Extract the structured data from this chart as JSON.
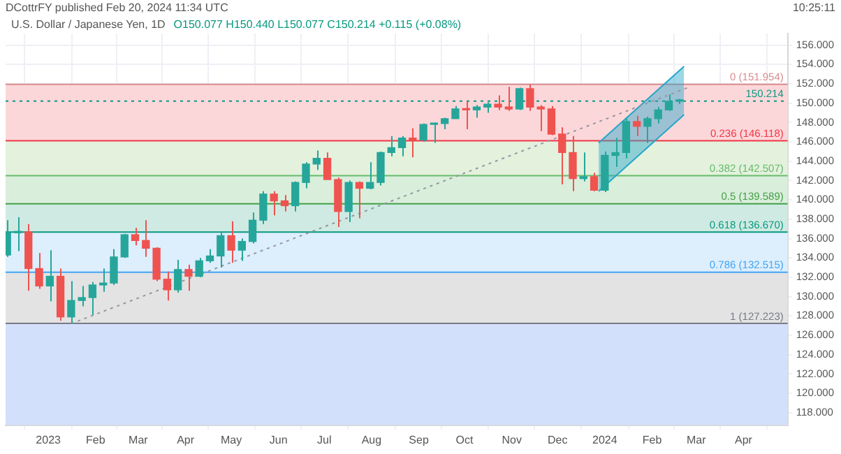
{
  "chart_data": {
    "type": "candlestick",
    "title": "U.S. Dollar / Japanese Yen, 1D",
    "subtitle": "O150.077 H150.440 L150.077 C150.214 +0.115 (+0.08%)",
    "annotations": [
      "DCottrFY published Feb 20, 2024 11:34 UTC",
      "10:25:11"
    ],
    "xlim": [
      "2022-12-04",
      "2024-04-30"
    ],
    "xticks": [
      {
        "value": "2023-01-01",
        "label": "2023"
      },
      {
        "value": "2023-02-01",
        "label": "Feb"
      },
      {
        "value": "2023-03-01",
        "label": "Mar"
      },
      {
        "value": "2023-04-01",
        "label": "Apr"
      },
      {
        "value": "2023-05-01",
        "label": "May"
      },
      {
        "value": "2023-06-01",
        "label": "Jun"
      },
      {
        "value": "2023-07-01",
        "label": "Jul"
      },
      {
        "value": "2023-08-01",
        "label": "Aug"
      },
      {
        "value": "2023-09-01",
        "label": "Sep"
      },
      {
        "value": "2023-10-01",
        "label": "Oct"
      },
      {
        "value": "2023-11-01",
        "label": "Nov"
      },
      {
        "value": "2023-12-01",
        "label": "Dec"
      },
      {
        "value": "2024-01-01",
        "label": "2024"
      },
      {
        "value": "2024-02-01",
        "label": "Feb"
      },
      {
        "value": "2024-03-01",
        "label": "Mar"
      },
      {
        "value": "2024-04-01",
        "label": "Apr"
      }
    ],
    "ylim": [
      116.7,
      157.2
    ],
    "yticks": [
      {
        "value": 118,
        "label": "118.000"
      },
      {
        "value": 120,
        "label": "120.000"
      },
      {
        "value": 122,
        "label": "122.000"
      },
      {
        "value": 124,
        "label": "124.000"
      },
      {
        "value": 126,
        "label": "126.000"
      },
      {
        "value": 128,
        "label": "128.000"
      },
      {
        "value": 130,
        "label": "130.000"
      },
      {
        "value": 132,
        "label": "132.000"
      },
      {
        "value": 134,
        "label": "134.000"
      },
      {
        "value": 136,
        "label": "136.000"
      },
      {
        "value": 138,
        "label": "138.000"
      },
      {
        "value": 140,
        "label": "140.000"
      },
      {
        "value": 142,
        "label": "142.000"
      },
      {
        "value": 144,
        "label": "144.000"
      },
      {
        "value": 146,
        "label": "146.000"
      },
      {
        "value": 148,
        "label": "148.000"
      },
      {
        "value": 150,
        "label": "150.000"
      },
      {
        "value": 152,
        "label": "152.000"
      },
      {
        "value": 154,
        "label": "154.000"
      },
      {
        "value": 156,
        "label": "156.000"
      }
    ],
    "grid": true,
    "bands": [
      {
        "axis": "y",
        "from": 146.118,
        "to": 151.954,
        "color": "#fcd7da"
      },
      {
        "axis": "y",
        "from": 142.507,
        "to": 146.118,
        "color": "#e3f1dd"
      },
      {
        "axis": "y",
        "from": 139.589,
        "to": 142.507,
        "color": "#d9eedb"
      },
      {
        "axis": "y",
        "from": 136.67,
        "to": 139.589,
        "color": "#cfeae2"
      },
      {
        "axis": "y",
        "from": 132.515,
        "to": 136.67,
        "color": "#ddeefc"
      },
      {
        "axis": "y",
        "from": 127.223,
        "to": 132.515,
        "color": "#e3e3e3"
      },
      {
        "axis": "y",
        "from": 116.7,
        "to": 127.223,
        "color": "#d3e0fb"
      }
    ],
    "ref_lines": [
      {
        "axis": "y",
        "value": 151.954,
        "label": "0 (151.954)",
        "color": "#d98c8f"
      },
      {
        "axis": "y",
        "value": 150.214,
        "label": "150.214",
        "color": "#089981",
        "line_style": "dotted"
      },
      {
        "axis": "y",
        "value": 146.118,
        "label": "0.236 (146.118)",
        "color": "#f23645"
      },
      {
        "axis": "y",
        "value": 142.507,
        "label": "0.382 (142.507)",
        "color": "#66bb6a"
      },
      {
        "axis": "y",
        "value": 139.589,
        "label": "0.5 (139.589)",
        "color": "#43a047"
      },
      {
        "axis": "y",
        "value": 136.67,
        "label": "0.618 (136.670)",
        "color": "#089981"
      },
      {
        "axis": "y",
        "value": 132.515,
        "label": "0.786 (132.515)",
        "color": "#42a5f5"
      },
      {
        "axis": "y",
        "value": 127.223,
        "label": "1 (127.223)",
        "color": "#787b86"
      }
    ],
    "series": [
      {
        "type": "line",
        "x": [
          "2023-01-16",
          "2024-02-26"
        ],
        "values": [
          127.2,
          151.7
        ],
        "color": "#9598a1",
        "line_style": "dotted"
      },
      {
        "type": "line",
        "x": [
          "2023-12-28",
          "2024-02-22"
        ],
        "values": [
          140.9,
          148.8
        ],
        "color": "#26a6c9"
      },
      {
        "type": "line",
        "x": [
          "2023-12-28",
          "2024-02-22"
        ],
        "values": [
          145.9,
          153.8
        ],
        "lower": [
          140.9,
          148.8
        ],
        "upper": [
          145.9,
          153.8
        ],
        "color": "#26a6c9"
      },
      {
        "x": [
          "2022-12-05",
          "2022-12-12",
          "2022-12-19",
          "2022-12-26",
          "2023-01-02",
          "2023-01-09",
          "2023-01-16",
          "2023-01-23",
          "2023-01-30",
          "2023-02-06",
          "2023-02-13",
          "2023-02-20",
          "2023-02-27",
          "2023-03-06",
          "2023-03-13",
          "2023-03-20",
          "2023-03-27",
          "2023-04-03",
          "2023-04-10",
          "2023-04-17",
          "2023-04-24",
          "2023-05-01",
          "2023-05-08",
          "2023-05-15",
          "2023-05-22",
          "2023-05-29",
          "2023-06-05",
          "2023-06-12",
          "2023-06-19",
          "2023-06-26",
          "2023-07-03",
          "2023-07-10",
          "2023-07-17",
          "2023-07-24",
          "2023-07-31",
          "2023-08-07",
          "2023-08-14",
          "2023-08-21",
          "2023-08-28",
          "2023-09-04",
          "2023-09-11",
          "2023-09-18",
          "2023-09-25",
          "2023-10-02",
          "2023-10-09",
          "2023-10-16",
          "2023-10-23",
          "2023-10-30",
          "2023-11-06",
          "2023-11-13",
          "2023-11-20",
          "2023-11-27",
          "2023-12-04",
          "2023-12-11",
          "2023-12-18",
          "2023-12-25",
          "2024-01-01",
          "2024-01-08",
          "2024-01-15",
          "2024-01-22",
          "2024-01-29",
          "2024-02-05",
          "2024-02-12",
          "2024-02-19"
        ],
        "ohlc": [
          [
            134.3,
            137.9,
            134.1,
            136.6
          ],
          [
            136.6,
            138.2,
            134.7,
            136.7
          ],
          [
            136.7,
            137.5,
            130.6,
            132.9
          ],
          [
            132.9,
            134.5,
            130.8,
            131.1
          ],
          [
            131.1,
            134.8,
            129.5,
            132.1
          ],
          [
            132.1,
            132.9,
            127.5,
            127.9
          ],
          [
            127.9,
            131.6,
            127.2,
            129.6
          ],
          [
            129.6,
            131.1,
            129.0,
            129.9
          ],
          [
            129.9,
            131.5,
            128.1,
            131.2
          ],
          [
            131.2,
            132.9,
            130.5,
            131.4
          ],
          [
            131.4,
            134.9,
            131.2,
            134.1
          ],
          [
            134.1,
            136.5,
            134.0,
            136.4
          ],
          [
            136.4,
            137.1,
            135.3,
            135.8
          ],
          [
            135.8,
            137.9,
            134.1,
            135.0
          ],
          [
            135.0,
            135.1,
            131.6,
            131.8
          ],
          [
            131.8,
            132.6,
            129.6,
            130.7
          ],
          [
            130.7,
            133.8,
            130.4,
            132.8
          ],
          [
            132.8,
            133.3,
            130.6,
            132.1
          ],
          [
            132.1,
            134.0,
            132.0,
            133.7
          ],
          [
            133.7,
            134.9,
            133.5,
            134.2
          ],
          [
            134.2,
            136.6,
            133.0,
            136.3
          ],
          [
            136.3,
            137.8,
            133.5,
            134.8
          ],
          [
            134.8,
            136.0,
            133.7,
            135.7
          ],
          [
            135.7,
            138.7,
            135.5,
            137.9
          ],
          [
            137.9,
            140.9,
            137.5,
            140.6
          ],
          [
            140.6,
            140.9,
            138.4,
            139.9
          ],
          [
            139.9,
            140.5,
            138.8,
            139.4
          ],
          [
            139.4,
            141.9,
            138.8,
            141.8
          ],
          [
            141.8,
            143.9,
            141.2,
            143.7
          ],
          [
            143.7,
            145.1,
            143.1,
            144.3
          ],
          [
            144.3,
            144.9,
            142.1,
            142.1
          ],
          [
            142.1,
            142.3,
            137.2,
            138.8
          ],
          [
            138.8,
            142.0,
            137.7,
            141.8
          ],
          [
            141.8,
            141.9,
            138.1,
            141.2
          ],
          [
            141.2,
            143.9,
            141.1,
            141.8
          ],
          [
            141.8,
            145.0,
            141.5,
            144.9
          ],
          [
            144.9,
            146.6,
            144.5,
            145.4
          ],
          [
            145.4,
            146.6,
            144.5,
            146.4
          ],
          [
            146.4,
            147.4,
            144.4,
            146.2
          ],
          [
            146.2,
            147.9,
            146.0,
            147.8
          ],
          [
            147.8,
            148.0,
            145.9,
            147.9
          ],
          [
            147.9,
            148.5,
            147.3,
            148.4
          ],
          [
            148.4,
            149.7,
            148.4,
            149.4
          ],
          [
            149.4,
            150.2,
            147.3,
            149.3
          ],
          [
            149.3,
            149.8,
            148.5,
            149.6
          ],
          [
            149.6,
            150.1,
            149.0,
            149.9
          ],
          [
            149.9,
            150.8,
            149.3,
            149.6
          ],
          [
            149.6,
            151.7,
            149.2,
            149.4
          ],
          [
            149.4,
            151.6,
            149.3,
            151.5
          ],
          [
            151.5,
            151.954,
            149.2,
            149.6
          ],
          [
            149.6,
            149.8,
            147.1,
            149.4
          ],
          [
            149.4,
            149.7,
            146.7,
            146.8
          ],
          [
            146.8,
            147.5,
            141.6,
            144.9
          ],
          [
            144.9,
            146.6,
            140.9,
            142.2
          ],
          [
            142.2,
            144.9,
            141.9,
            142.4
          ],
          [
            142.4,
            142.8,
            140.9,
            141.0
          ],
          [
            141.0,
            145.0,
            140.8,
            144.6
          ],
          [
            144.6,
            146.4,
            143.4,
            144.9
          ],
          [
            144.9,
            148.5,
            144.3,
            148.1
          ],
          [
            148.1,
            148.7,
            146.6,
            147.6
          ],
          [
            147.6,
            148.6,
            145.9,
            148.4
          ],
          [
            148.4,
            149.6,
            147.9,
            149.3
          ],
          [
            149.3,
            150.9,
            149.2,
            150.2
          ],
          [
            150.2,
            150.44,
            149.9,
            150.214
          ]
        ],
        "colors": [
          "#26a69a",
          "#26a69a",
          "#ef5350",
          "#ef5350",
          "#26a69a",
          "#ef5350",
          "#26a69a",
          "#26a69a",
          "#26a69a",
          "#26a69a",
          "#26a69a",
          "#26a69a",
          "#ef5350",
          "#ef5350",
          "#ef5350",
          "#ef5350",
          "#26a69a",
          "#ef5350",
          "#26a69a",
          "#26a69a",
          "#26a69a",
          "#ef5350",
          "#26a69a",
          "#26a69a",
          "#26a69a",
          "#ef5350",
          "#ef5350",
          "#26a69a",
          "#26a69a",
          "#26a69a",
          "#ef5350",
          "#ef5350",
          "#26a69a",
          "#ef5350",
          "#26a69a",
          "#26a69a",
          "#26a69a",
          "#26a69a",
          "#ef5350",
          "#26a69a",
          "#26a69a",
          "#26a69a",
          "#26a69a",
          "#ef5350",
          "#26a69a",
          "#26a69a",
          "#ef5350",
          "#ef5350",
          "#26a69a",
          "#ef5350",
          "#ef5350",
          "#ef5350",
          "#ef5350",
          "#ef5350",
          "#26a69a",
          "#ef5350",
          "#26a69a",
          "#26a69a",
          "#26a69a",
          "#ef5350",
          "#26a69a",
          "#26a69a",
          "#26a69a",
          "#26a69a"
        ]
      }
    ]
  }
}
